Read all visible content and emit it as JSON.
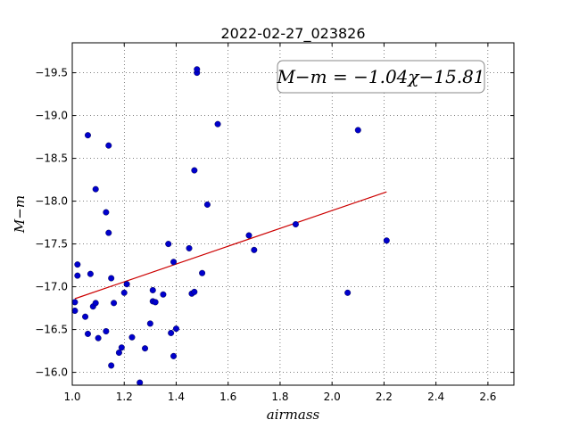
{
  "chart_data": {
    "type": "scatter",
    "title": "2022-02-27_023826",
    "xlabel": "airmass",
    "ylabel": "M−m",
    "xlim": [
      1.0,
      2.7
    ],
    "ylim": [
      -19.85,
      -15.85
    ],
    "y_inverted": true,
    "grid": true,
    "x_ticks": [
      1.0,
      1.2,
      1.4,
      1.6,
      1.8,
      2.0,
      2.2,
      2.4,
      2.6
    ],
    "x_tick_labels": [
      "1.0",
      "1.2",
      "1.4",
      "1.6",
      "1.8",
      "2.0",
      "2.2",
      "2.4",
      "2.6"
    ],
    "y_ticks": [
      -16.0,
      -16.5,
      -17.0,
      -17.5,
      -18.0,
      -18.5,
      -19.0,
      -19.5
    ],
    "y_tick_labels": [
      "−16.0",
      "−16.5",
      "−17.0",
      "−17.5",
      "−18.0",
      "−18.5",
      "−19.0",
      "−19.5"
    ],
    "point_color": "#0000cc",
    "fit_color": "#cc0000",
    "annotation": "M−m = −1.04χ−15.81",
    "fit_line": {
      "slope": -1.04,
      "intercept": -15.81,
      "x_range": [
        1.01,
        2.21
      ]
    },
    "points": [
      {
        "x": 1.01,
        "y": -16.72
      },
      {
        "x": 1.01,
        "y": -16.82
      },
      {
        "x": 1.02,
        "y": -17.13
      },
      {
        "x": 1.02,
        "y": -17.26
      },
      {
        "x": 1.05,
        "y": -16.65
      },
      {
        "x": 1.06,
        "y": -16.45
      },
      {
        "x": 1.07,
        "y": -17.15
      },
      {
        "x": 1.08,
        "y": -16.77
      },
      {
        "x": 1.09,
        "y": -16.81
      },
      {
        "x": 1.1,
        "y": -16.4
      },
      {
        "x": 1.06,
        "y": -18.77
      },
      {
        "x": 1.09,
        "y": -18.14
      },
      {
        "x": 1.13,
        "y": -16.48
      },
      {
        "x": 1.13,
        "y": -17.87
      },
      {
        "x": 1.14,
        "y": -17.63
      },
      {
        "x": 1.14,
        "y": -18.65
      },
      {
        "x": 1.15,
        "y": -16.08
      },
      {
        "x": 1.15,
        "y": -17.1
      },
      {
        "x": 1.16,
        "y": -16.81
      },
      {
        "x": 1.18,
        "y": -16.23
      },
      {
        "x": 1.19,
        "y": -16.29
      },
      {
        "x": 1.2,
        "y": -16.93
      },
      {
        "x": 1.21,
        "y": -17.03
      },
      {
        "x": 1.23,
        "y": -16.41
      },
      {
        "x": 1.26,
        "y": -15.88
      },
      {
        "x": 1.28,
        "y": -16.28
      },
      {
        "x": 1.3,
        "y": -16.57
      },
      {
        "x": 1.31,
        "y": -16.83
      },
      {
        "x": 1.31,
        "y": -16.96
      },
      {
        "x": 1.32,
        "y": -16.82
      },
      {
        "x": 1.35,
        "y": -16.91
      },
      {
        "x": 1.37,
        "y": -17.5
      },
      {
        "x": 1.38,
        "y": -16.46
      },
      {
        "x": 1.39,
        "y": -16.19
      },
      {
        "x": 1.39,
        "y": -17.29
      },
      {
        "x": 1.4,
        "y": -16.51
      },
      {
        "x": 1.45,
        "y": -17.45
      },
      {
        "x": 1.46,
        "y": -16.92
      },
      {
        "x": 1.47,
        "y": -16.94
      },
      {
        "x": 1.47,
        "y": -18.36
      },
      {
        "x": 1.48,
        "y": -19.5
      },
      {
        "x": 1.48,
        "y": -19.54
      },
      {
        "x": 1.5,
        "y": -17.16
      },
      {
        "x": 1.52,
        "y": -17.96
      },
      {
        "x": 1.56,
        "y": -18.9
      },
      {
        "x": 1.68,
        "y": -17.6
      },
      {
        "x": 1.7,
        "y": -17.43
      },
      {
        "x": 1.86,
        "y": -17.73
      },
      {
        "x": 2.06,
        "y": -16.93
      },
      {
        "x": 2.1,
        "y": -18.83
      },
      {
        "x": 2.21,
        "y": -17.54
      }
    ]
  }
}
